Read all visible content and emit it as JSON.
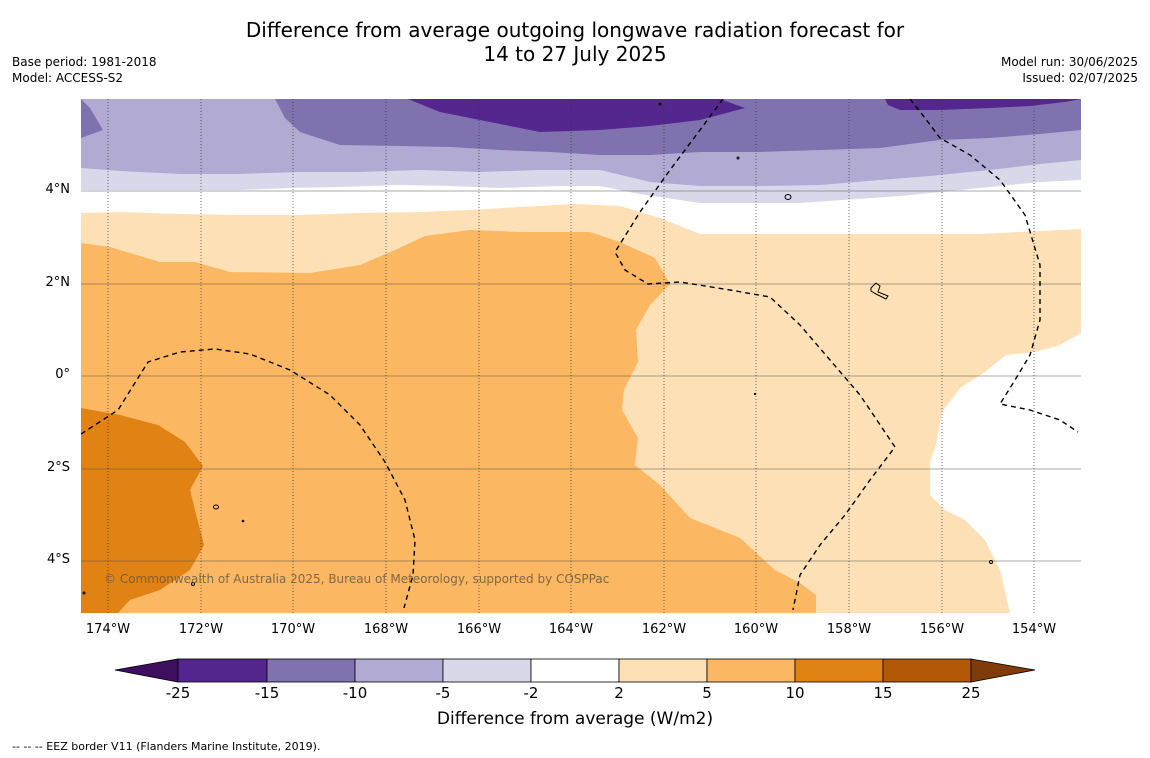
{
  "title_line1": "Difference from average outgoing longwave radiation forecast for",
  "title_line2": "14 to 27 July 2025",
  "meta_left": {
    "base_period": "Base period: 1981-2018",
    "model": "Model: ACCESS-S2"
  },
  "meta_right": {
    "model_run": "Model run: 30/06/2025",
    "issued": "Issued: 02/07/2025"
  },
  "latitude_labels": [
    "4°N",
    "2°N",
    "0°",
    "2°S",
    "4°S"
  ],
  "longitude_labels": [
    "174°W",
    "172°W",
    "170°W",
    "168°W",
    "166°W",
    "164°W",
    "162°W",
    "160°W",
    "158°W",
    "156°W",
    "154°W"
  ],
  "colorbar": {
    "title": "Difference from average (W/m2)",
    "ticks": [
      "-25",
      "-15",
      "-10",
      "-5",
      "-2",
      "2",
      "5",
      "10",
      "15",
      "25"
    ],
    "colors": {
      "under": "#3f0f5f",
      "lt_-15": "#54278f",
      "lt_-10": "#7f72ae",
      "lt_-5": "#b1abd3",
      "lt_-2": "#d9d8eb",
      "neutral": "#ffffff",
      "gt_2": "#fde0b5",
      "gt_5": "#fbb762",
      "gt_10": "#e08214",
      "gt_15": "#b35806",
      "over": "#7f3b08"
    }
  },
  "copyright": "© Commonwealth of Australia 2025, Bureau of Meteorology, supported by COSPPac",
  "footer": "-- -- -- EEZ border V11 (Flanders Marine Institute, 2019)."
}
